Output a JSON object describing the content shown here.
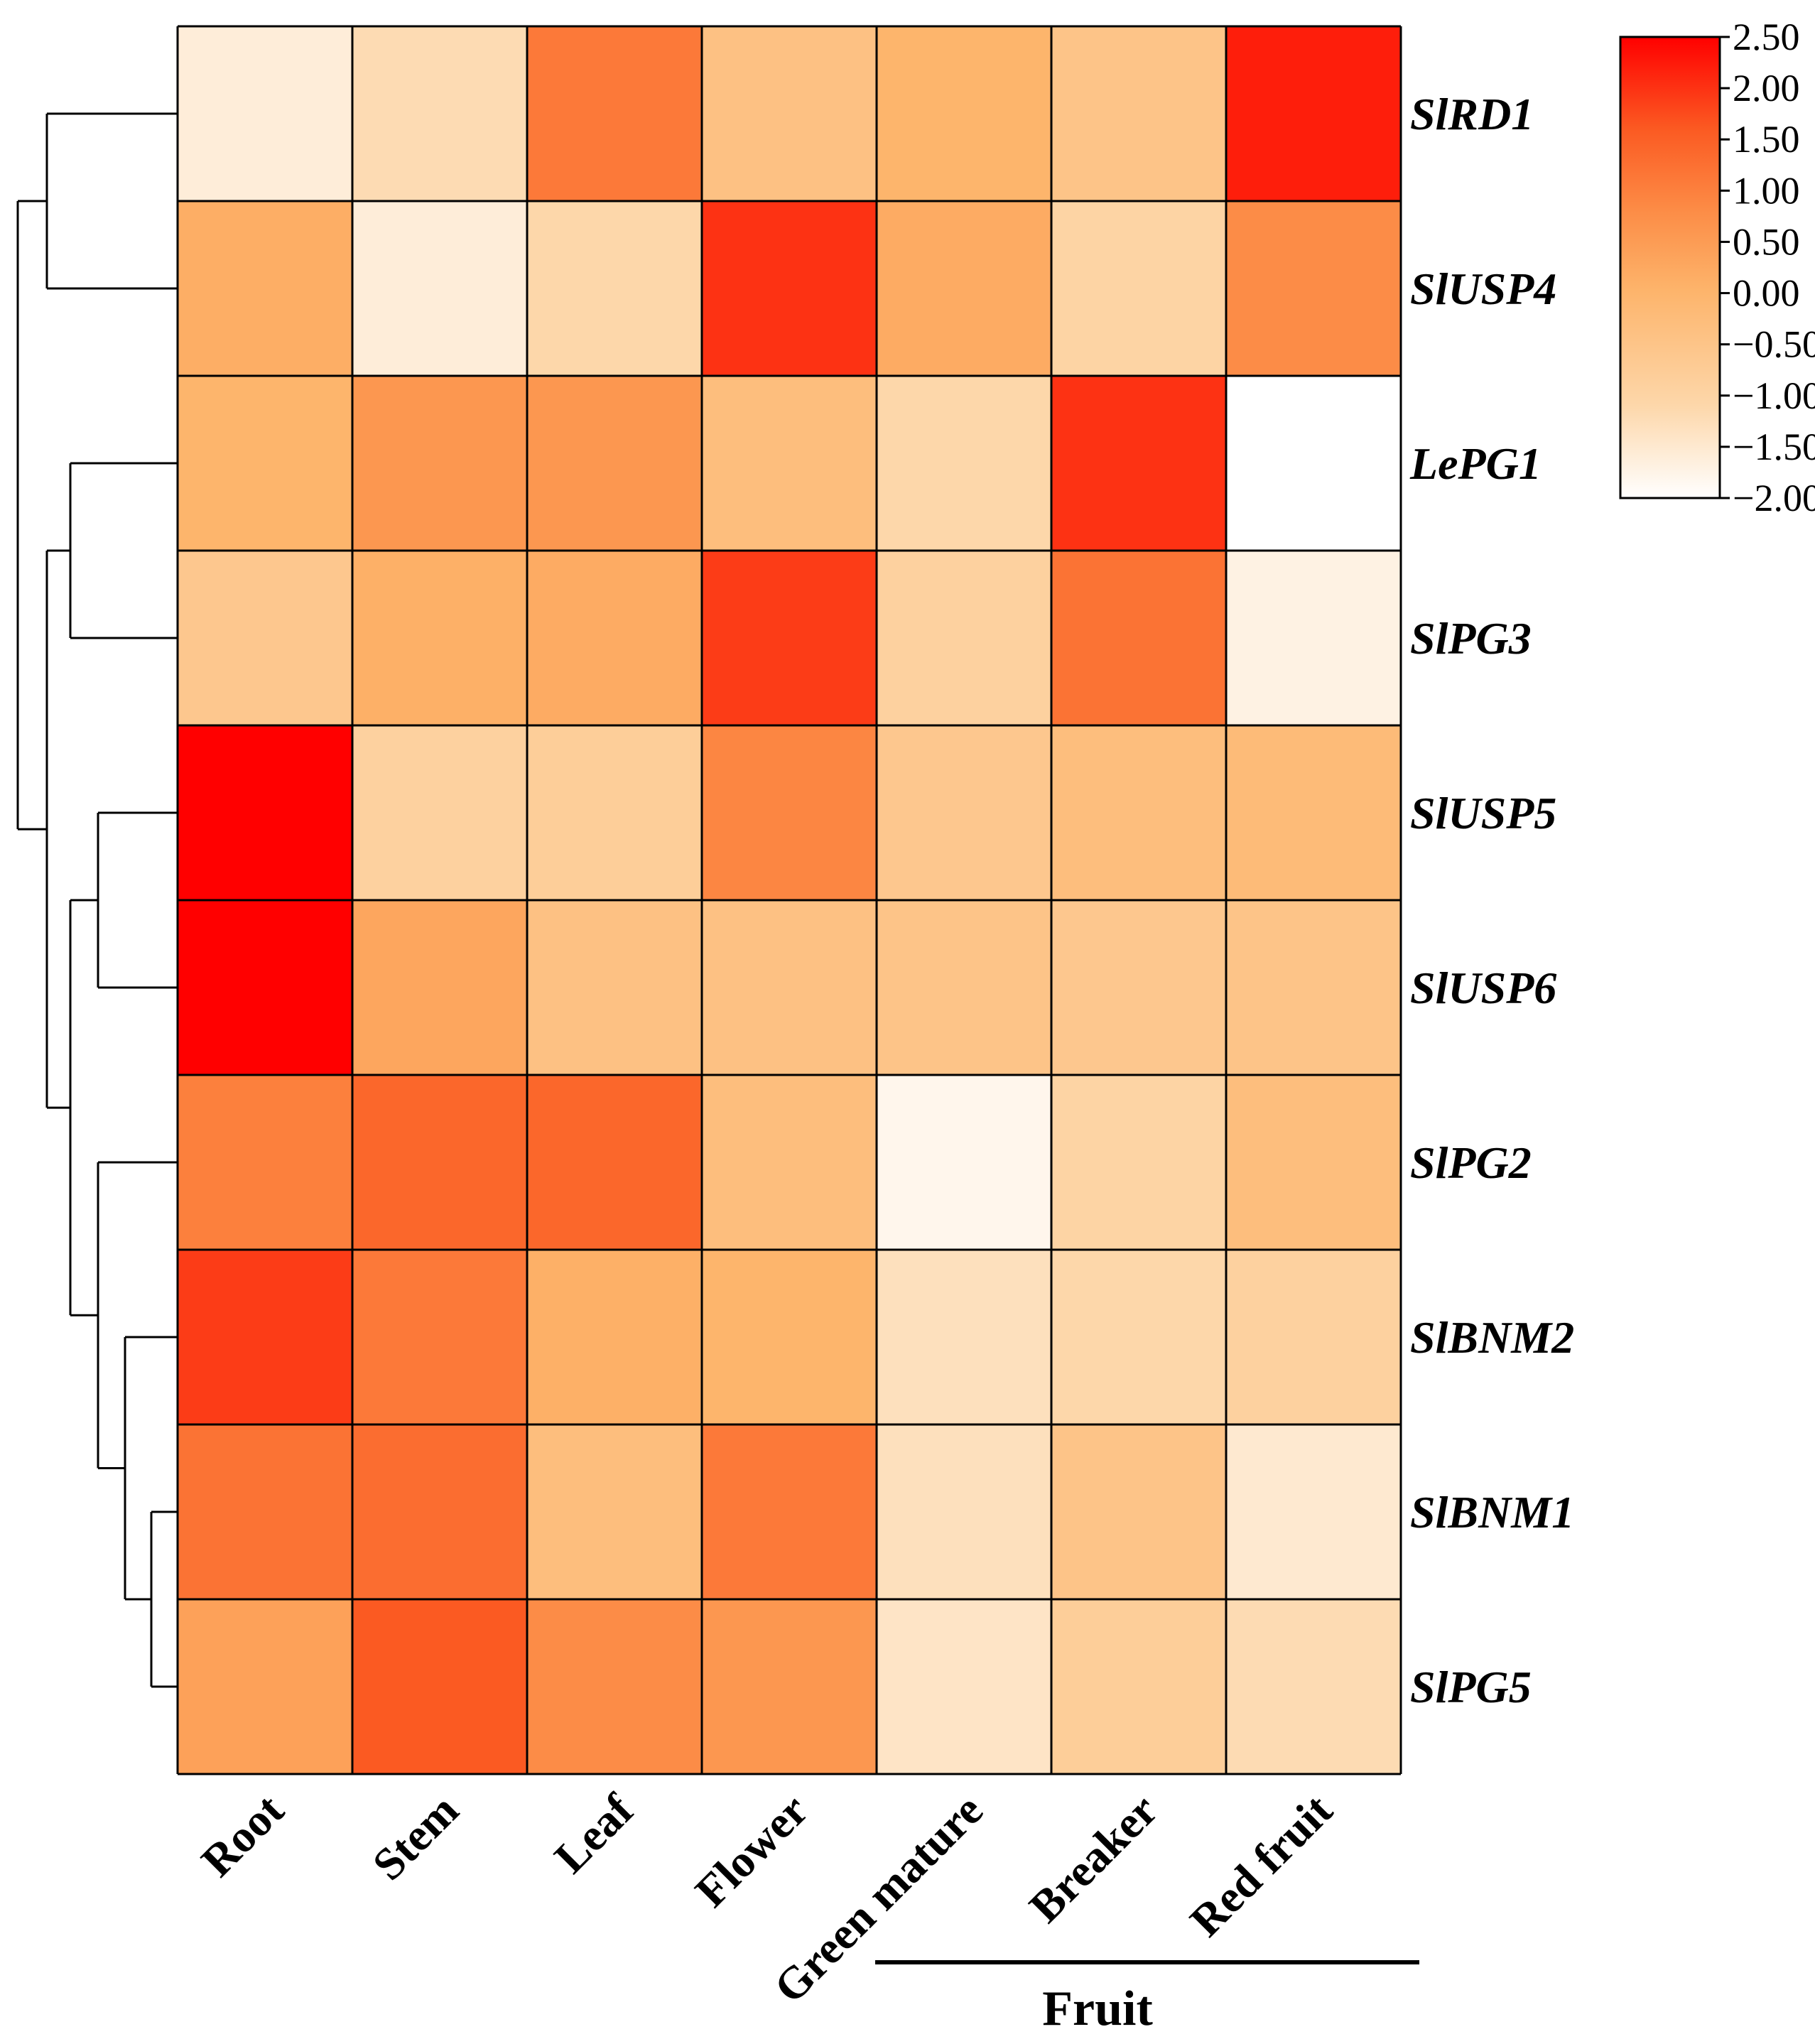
{
  "chart_data": {
    "type": "heatmap",
    "title": "",
    "columns": [
      "Root",
      "Stem",
      "Leaf",
      "Flower",
      "Green mature",
      "Breaker",
      "Red fruit"
    ],
    "rows": [
      "SlRD1",
      "SlUSP4",
      "LePG1",
      "SlPG3",
      "SlUSP5",
      "SlUSP6",
      "SlPG2",
      "SlBNM2",
      "SlBNM1",
      "SlPG5"
    ],
    "values": [
      [
        -1.6,
        -1.2,
        1.1,
        -0.4,
        0.0,
        -0.5,
        2.2
      ],
      [
        0.15,
        -1.6,
        -1.1,
        2.0,
        0.2,
        -1.0,
        0.8
      ],
      [
        0.0,
        0.6,
        0.6,
        -0.3,
        -1.1,
        2.0,
        -2.0
      ],
      [
        -0.6,
        0.1,
        0.2,
        1.9,
        -0.9,
        1.2,
        -1.7
      ],
      [
        2.5,
        -0.9,
        -0.8,
        0.9,
        -0.6,
        -0.3,
        -0.2
      ],
      [
        2.5,
        0.3,
        -0.4,
        -0.4,
        -0.5,
        -0.6,
        -0.5
      ],
      [
        1.0,
        1.4,
        1.4,
        -0.3,
        -1.8,
        -1.0,
        -0.3
      ],
      [
        1.9,
        1.1,
        0.1,
        0.0,
        -1.3,
        -1.1,
        -0.9
      ],
      [
        1.2,
        1.3,
        -0.3,
        1.1,
        -1.3,
        -0.5,
        -1.5
      ],
      [
        0.4,
        1.6,
        0.8,
        0.6,
        -1.4,
        -0.8,
        -1.2
      ]
    ],
    "colorbar": {
      "min": -2.0,
      "max": 2.5,
      "ticks": [
        "2.50",
        "2.00",
        "1.50",
        "1.00",
        "0.50",
        "0.00",
        "−0.50",
        "−1.00",
        "−1.50",
        "−2.00"
      ],
      "colors": [
        "#ffffff",
        "#fdd7aa",
        "#fdb46b",
        "#fc8d47",
        "#fb5a22",
        "#ff0000"
      ]
    },
    "column_group": {
      "label": "Fruit",
      "columns": [
        "Green mature",
        "Breaker",
        "Red fruit"
      ]
    },
    "dendrogram": "rows: ((SlRD1, SlUSP4), ((LePG1, SlPG3), ((SlUSP5, SlUSP6), (SlPG2, (SlBNM2, (SlBNM1, SlPG5))))))"
  }
}
